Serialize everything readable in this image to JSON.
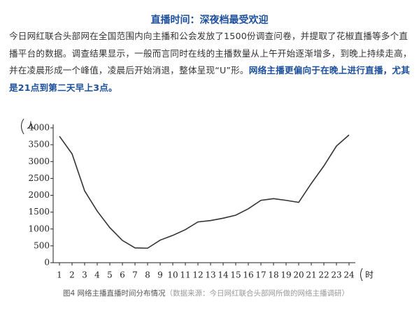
{
  "header": {
    "title": "直播时间：深夜档最受欢迎"
  },
  "paragraph": {
    "text": "今日网红联合头部网在全国范围内向主播和公会发放了1500份调查问卷，并提取了花椒直播等多个直播平台的数据。调查结果显示，一般而言同时在线的主播数量从上午开始逐渐增多，到晚上持续走高，并在凌晨形成一个峰值，凌晨后开始消退，整体呈现“U”形。",
    "highlight": "网络主播更偏向于在晚上进行直播，尤其是21点到第二天早上3点。"
  },
  "chart_data": {
    "type": "line",
    "x": [
      1,
      2,
      3,
      4,
      5,
      6,
      7,
      8,
      9,
      10,
      11,
      12,
      13,
      14,
      15,
      16,
      17,
      18,
      19,
      20,
      21,
      22,
      23,
      24
    ],
    "values": [
      3750,
      3230,
      2130,
      1530,
      1040,
      660,
      440,
      430,
      670,
      810,
      980,
      1210,
      1250,
      1320,
      1410,
      1600,
      1850,
      1900,
      1850,
      1790,
      2350,
      2870,
      3460,
      3790
    ],
    "color": "#333333",
    "xlim": [
      0.5,
      25
    ],
    "xticks": [
      1,
      2,
      3,
      4,
      5,
      6,
      7,
      8,
      9,
      10,
      11,
      12,
      13,
      14,
      15,
      16,
      17,
      18,
      19,
      20,
      21,
      22,
      23,
      24
    ],
    "ylim": [
      0,
      4000
    ],
    "yticks": [
      0,
      500,
      1000,
      1500,
      2000,
      2500,
      3000,
      3500,
      4000
    ],
    "xlabel": "时",
    "ylabel": "人"
  },
  "caption": {
    "figure": "图4 网络主播直播时间分布情况",
    "source": "（数据来源：今日网红联合头部网所做的网络主播调研）"
  }
}
